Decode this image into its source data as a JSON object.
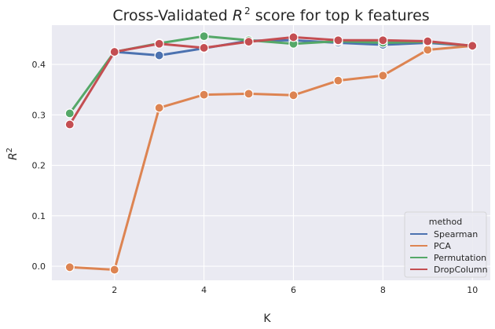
{
  "chart_data": {
    "type": "line",
    "title_prefix": "Cross-Validated ",
    "title_symbol": "R",
    "title_sup": "2",
    "title_suffix": " score for top k features",
    "xlabel": "K",
    "ylabel_symbol": "R",
    "ylabel_sup": "2",
    "x": [
      1,
      2,
      3,
      4,
      5,
      6,
      7,
      8,
      9,
      10
    ],
    "xlim": [
      0.6,
      10.4
    ],
    "ylim": [
      -0.028,
      0.478
    ],
    "xticks": [
      2,
      4,
      6,
      8,
      10
    ],
    "yticks": [
      0.0,
      0.1,
      0.2,
      0.3,
      0.4
    ],
    "ytick_labels": [
      "0.0",
      "0.1",
      "0.2",
      "0.3",
      "0.4"
    ],
    "grid": true,
    "legend_title": "method",
    "legend_position": "lower-right",
    "series": [
      {
        "name": "Spearman",
        "color": "#4c72b0",
        "values": [
          null,
          0.425,
          0.418,
          0.432,
          0.447,
          0.448,
          0.443,
          0.439,
          0.443,
          0.437
        ]
      },
      {
        "name": "PCA",
        "color": "#dd8452",
        "values": [
          -0.002,
          -0.007,
          0.314,
          0.34,
          0.342,
          0.339,
          0.368,
          0.378,
          0.429,
          0.437
        ]
      },
      {
        "name": "Permutation",
        "color": "#55a868",
        "values": [
          0.303,
          0.425,
          0.442,
          0.456,
          0.448,
          0.441,
          0.446,
          0.443,
          0.445,
          0.437
        ]
      },
      {
        "name": "DropColumn",
        "color": "#c44e52",
        "values": [
          0.281,
          0.425,
          0.441,
          0.433,
          0.445,
          0.454,
          0.448,
          0.448,
          0.446,
          0.437
        ]
      }
    ]
  }
}
